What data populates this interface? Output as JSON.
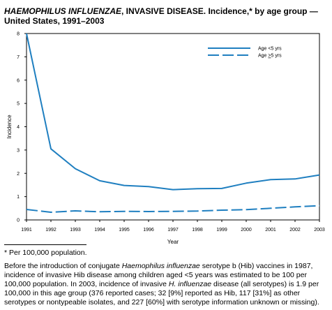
{
  "header": {
    "title_italic": "HAEMOPHILUS INFLUENZAE",
    "title_rest": ", INVASIVE DISEASE. Incidence,* by age group — United States, 1991–2003"
  },
  "chart_data": {
    "type": "line",
    "title": "HAEMOPHILUS INFLUENZAE, INVASIVE DISEASE. Incidence,* by age group — United States, 1991–2003",
    "xlabel": "Year",
    "ylabel": "Incidence",
    "x": [
      1991,
      1992,
      1993,
      1994,
      1995,
      1996,
      1997,
      1998,
      1999,
      2000,
      2001,
      2002,
      2003
    ],
    "ylim": [
      0,
      8
    ],
    "yticks": [
      0,
      1,
      2,
      3,
      4,
      5,
      6,
      7,
      8
    ],
    "grid": false,
    "legend_position": "top-right",
    "series": [
      {
        "name": "Age <5 yrs",
        "style": "solid",
        "color": "#1f7fc0",
        "values": [
          8.0,
          3.05,
          2.2,
          1.68,
          1.48,
          1.43,
          1.3,
          1.34,
          1.35,
          1.58,
          1.73,
          1.76,
          1.93
        ]
      },
      {
        "name": "Age ≥5 yrs",
        "legend_prefix": "Age ",
        "legend_underlined": ">",
        "legend_suffix": "5 yrs",
        "style": "dashed",
        "color": "#1f7fc0",
        "values": [
          0.45,
          0.33,
          0.39,
          0.35,
          0.37,
          0.36,
          0.37,
          0.38,
          0.42,
          0.44,
          0.5,
          0.56,
          0.61
        ]
      }
    ]
  },
  "footnote": "* Per 100,000 population.",
  "note": {
    "p1": "Before the introduction of conjugate ",
    "p1_italic": "Haemophilus influenzae",
    "p2": " serotype b (Hib) vaccines in 1987, incidence of invasive Hib disease among children aged <5 years was estimated to be 100 per 100,000 population. In 2003, incidence of invasive ",
    "p2_italic": "H. influenzae",
    "p3": " disease (all serotypes) is 1.9 per 100,000 in this age group (376 reported cases; 32 [9%] reported as Hib, 117 [31%] as other serotypes or nontypeable isolates, and 227 [60%] with serotype information unknown or missing)."
  }
}
